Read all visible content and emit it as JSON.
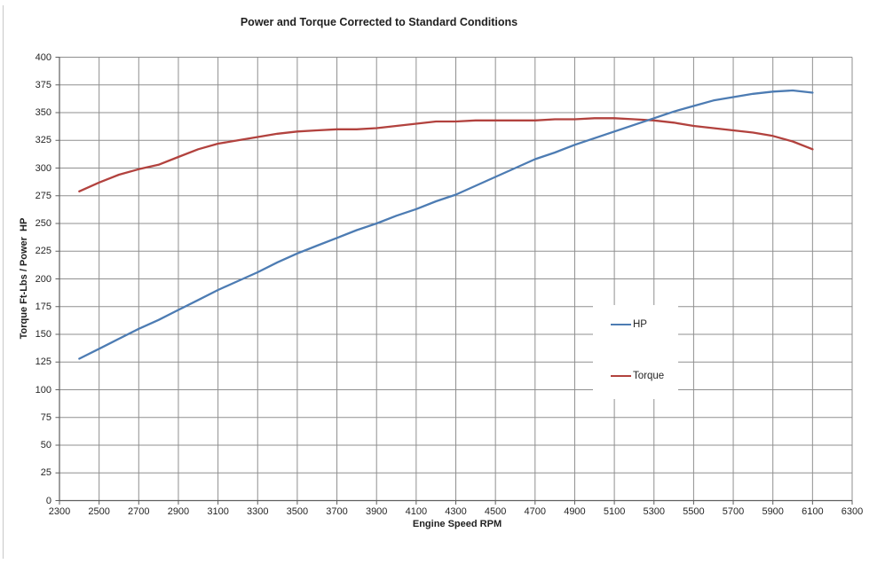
{
  "page": {
    "background": "#ffffff"
  },
  "chart_data": {
    "type": "line",
    "title": "Power and Torque Corrected to Standard Conditions",
    "xlabel": "Engine Speed RPM",
    "ylabel": "Torque Ft-Lbs / Power  HP",
    "xlim": [
      2300,
      6300
    ],
    "ylim": [
      0,
      400
    ],
    "grid": true,
    "legend_position": "middle-right",
    "x_ticks": [
      2300,
      2500,
      2700,
      2900,
      3100,
      3300,
      3500,
      3700,
      3900,
      4100,
      4300,
      4500,
      4700,
      4900,
      5100,
      5300,
      5500,
      5700,
      5900,
      6100,
      6300
    ],
    "y_ticks": [
      0,
      25,
      50,
      75,
      100,
      125,
      150,
      175,
      200,
      225,
      250,
      275,
      300,
      325,
      350,
      375,
      400
    ],
    "x": [
      2400,
      2500,
      2600,
      2700,
      2800,
      2900,
      3000,
      3100,
      3200,
      3300,
      3400,
      3500,
      3600,
      3700,
      3800,
      3900,
      4000,
      4100,
      4200,
      4300,
      4400,
      4500,
      4600,
      4700,
      4800,
      4900,
      5000,
      5100,
      5200,
      5300,
      5400,
      5500,
      5600,
      5700,
      5800,
      5900,
      6000,
      6100
    ],
    "series": [
      {
        "name": "HP",
        "color": "#4d7cb3",
        "values": [
          128,
          137,
          146,
          155,
          163,
          172,
          181,
          190,
          198,
          206,
          215,
          223,
          230,
          237,
          244,
          250,
          257,
          263,
          270,
          276,
          284,
          292,
          300,
          308,
          314,
          321,
          327,
          333,
          339,
          345,
          351,
          356,
          361,
          364,
          367,
          369,
          370,
          368
        ]
      },
      {
        "name": "Torque",
        "color": "#b2423e",
        "values": [
          279,
          287,
          294,
          299,
          303,
          310,
          317,
          322,
          325,
          328,
          331,
          333,
          334,
          335,
          335,
          336,
          338,
          340,
          342,
          342,
          343,
          343,
          343,
          343,
          344,
          344,
          345,
          345,
          344,
          343,
          341,
          338,
          336,
          334,
          332,
          329,
          324,
          317
        ]
      }
    ]
  },
  "colors": {
    "gridline": "#8f8f8f",
    "axis": "#5f5f5f",
    "tick": "#5f5f5f",
    "text": "#262626"
  }
}
